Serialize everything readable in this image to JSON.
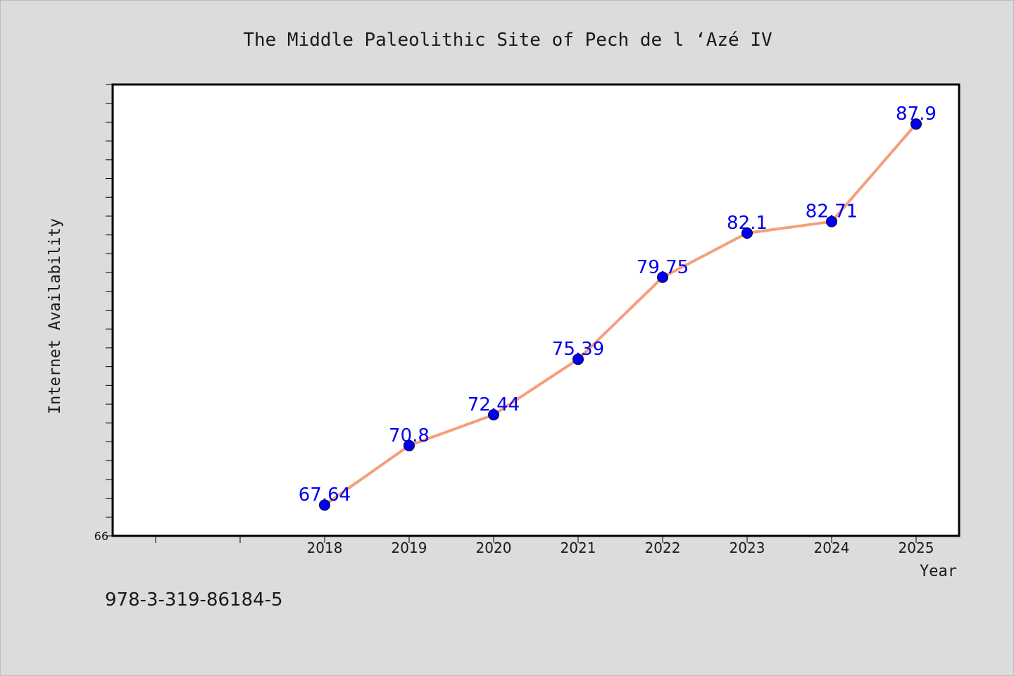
{
  "chart_data": {
    "type": "line",
    "title": "The Middle Paleolithic Site of Pech de l ‘Azé IV",
    "xlabel": "Year",
    "ylabel": "Internet Availability",
    "categories": [
      "2018",
      "2019",
      "2020",
      "2021",
      "2022",
      "2023",
      "2024",
      "2025"
    ],
    "values": [
      67.64,
      70.8,
      72.44,
      75.39,
      79.75,
      82.1,
      82.71,
      87.9
    ],
    "data_labels": [
      "67.64",
      "70.8",
      "72.44",
      "75.39",
      "79.75",
      "82.1",
      "82.71",
      "87.9"
    ],
    "y_tick_labels": [
      "66"
    ],
    "ylim": [
      66,
      90
    ],
    "x_category_slots": 10,
    "grid": false,
    "legend": "none",
    "line_color": "#f4a07c",
    "marker_color": "#0000ee",
    "label_color": "#0000ee"
  },
  "footnote": "978-3-319-86184-5"
}
